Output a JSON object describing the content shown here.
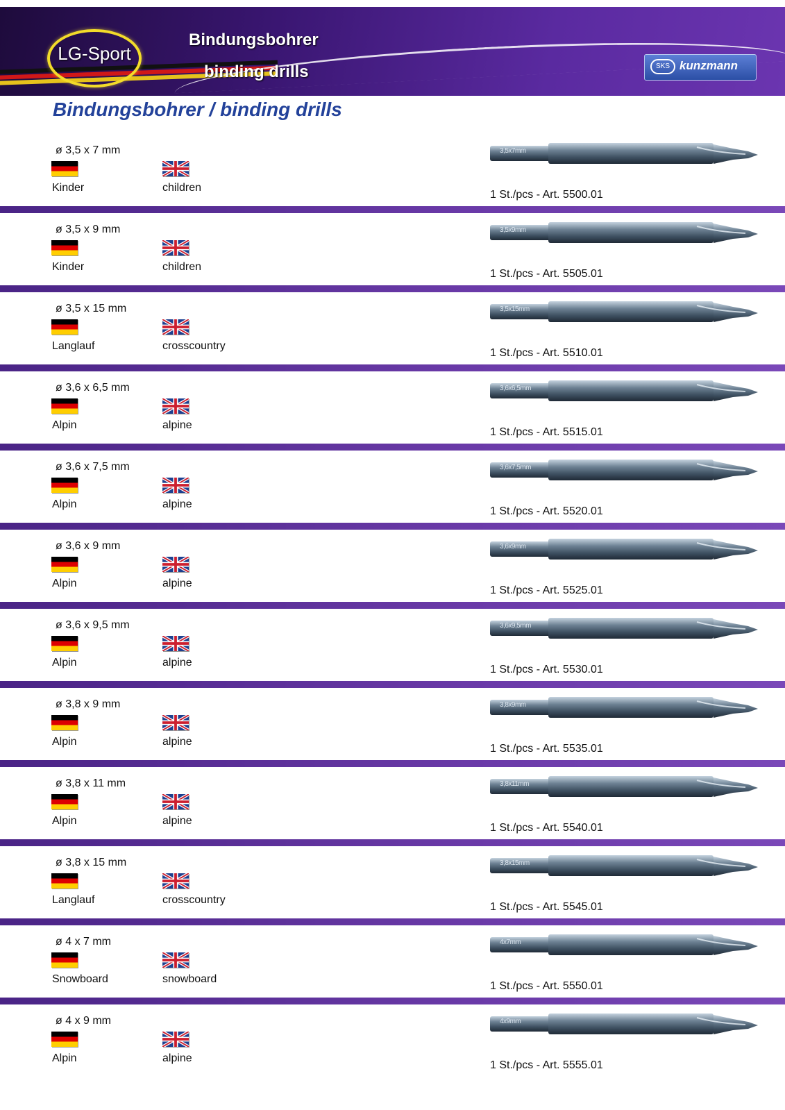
{
  "header": {
    "logo_text": "LG-Sport",
    "title": "Bindungsbohrer",
    "subtitle": "binding drills",
    "brand_mark": "SKS",
    "brand_name": "kunzmann"
  },
  "page_title": "Bindungsbohrer / binding drills",
  "items": [
    {
      "dim": "ø 3,5 x 7 mm",
      "de": "Kinder",
      "en": "children",
      "art": "1 St./pcs - Art. 5500.01",
      "engraving": "3,5x7mm"
    },
    {
      "dim": "ø 3,5 x 9 mm",
      "de": "Kinder",
      "en": "children",
      "art": "1 St./pcs - Art. 5505.01",
      "engraving": "3,5x9mm"
    },
    {
      "dim": "ø 3,5 x 15 mm",
      "de": "Langlauf",
      "en": "crosscountry",
      "art": "1 St./pcs - Art. 5510.01",
      "engraving": "3,5x15mm"
    },
    {
      "dim": "ø 3,6 x 6,5 mm",
      "de": "Alpin",
      "en": "alpine",
      "art": "1 St./pcs - Art. 5515.01",
      "engraving": "3,6x6,5mm"
    },
    {
      "dim": "ø 3,6 x 7,5 mm",
      "de": "Alpin",
      "en": "alpine",
      "art": "1 St./pcs - Art. 5520.01",
      "engraving": "3,6x7,5mm"
    },
    {
      "dim": "ø 3,6 x 9 mm",
      "de": "Alpin",
      "en": "alpine",
      "art": "1 St./pcs - Art. 5525.01",
      "engraving": "3,6x9mm"
    },
    {
      "dim": "ø 3,6 x 9,5 mm",
      "de": "Alpin",
      "en": "alpine",
      "art": "1 St./pcs - Art. 5530.01",
      "engraving": "3,6x9,5mm"
    },
    {
      "dim": "ø 3,8 x 9 mm",
      "de": "Alpin",
      "en": "alpine",
      "art": "1 St./pcs - Art. 5535.01",
      "engraving": "3,8x9mm"
    },
    {
      "dim": "ø 3,8 x 11 mm",
      "de": "Alpin",
      "en": "alpine",
      "art": "1 St./pcs - Art. 5540.01",
      "engraving": "3,8x11mm"
    },
    {
      "dim": "ø 3,8 x 15 mm",
      "de": "Langlauf",
      "en": "crosscountry",
      "art": "1 St./pcs - Art. 5545.01",
      "engraving": "3,8x15mm"
    },
    {
      "dim": "ø 4 x 7 mm",
      "de": "Snowboard",
      "en": "snowboard",
      "art": "1 St./pcs - Art. 5550.01",
      "engraving": "4x7mm"
    },
    {
      "dim": "ø 4 x 9 mm",
      "de": "Alpin",
      "en": "alpine",
      "art": "1 St./pcs - Art. 5555.01",
      "engraving": "4x9mm"
    }
  ]
}
